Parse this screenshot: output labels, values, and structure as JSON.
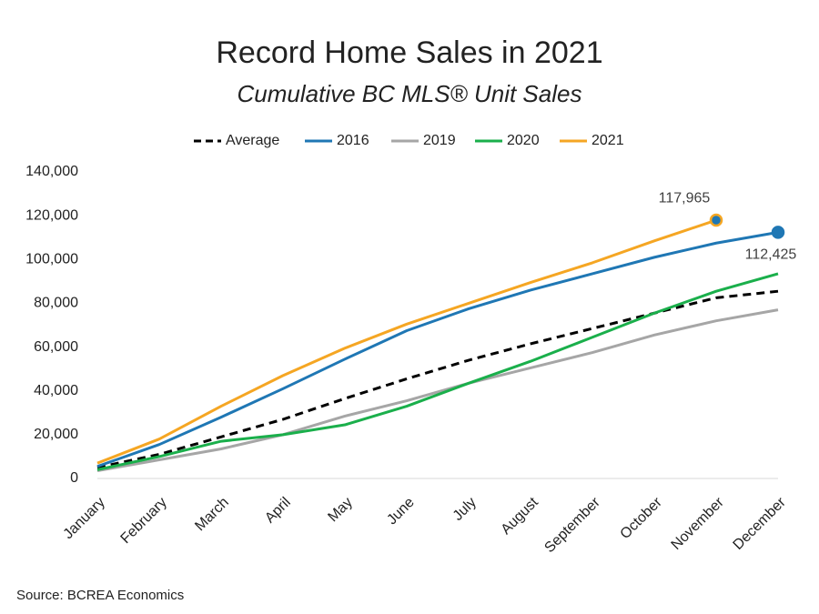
{
  "chart_data": {
    "type": "line",
    "title": "Record Home Sales in 2021",
    "subtitle": "Cumulative BC MLS® Unit Sales",
    "source": "Source: BCREA Economics",
    "categories": [
      "January",
      "February",
      "March",
      "April",
      "May",
      "June",
      "July",
      "August",
      "September",
      "October",
      "November",
      "December"
    ],
    "series": [
      {
        "name": "Average",
        "color": "#000000",
        "dashed": true,
        "values": [
          5000,
          11000,
          19000,
          27000,
          36500,
          45500,
          54000,
          61500,
          68500,
          75500,
          82500,
          85500
        ]
      },
      {
        "name": "2016",
        "color": "#1f77b4",
        "values": [
          5500,
          15500,
          28000,
          41000,
          54500,
          67500,
          77500,
          86000,
          93500,
          101000,
          107500,
          112425
        ],
        "value_labels": [
          null,
          null,
          null,
          null,
          null,
          null,
          null,
          null,
          null,
          null,
          null,
          "112,425"
        ]
      },
      {
        "name": "2019",
        "color": "#a6a6a6",
        "values": [
          3500,
          8500,
          13500,
          20000,
          28500,
          35500,
          43500,
          50500,
          57500,
          65500,
          72000,
          77000
        ]
      },
      {
        "name": "2020",
        "color": "#1aaf4b",
        "values": [
          4000,
          10000,
          17000,
          20000,
          24500,
          33000,
          43500,
          53500,
          64500,
          75500,
          85500,
          93500
        ]
      },
      {
        "name": "2021",
        "color": "#f5a623",
        "values": [
          7000,
          18000,
          33000,
          47000,
          59500,
          70500,
          80000,
          89500,
          98500,
          108500,
          117965,
          null
        ],
        "value_labels": [
          null,
          null,
          null,
          null,
          null,
          null,
          null,
          null,
          null,
          null,
          "117,965",
          null
        ]
      }
    ],
    "ylim": [
      0,
      140000
    ],
    "yticks": [
      0,
      {
        "value": 20000,
        "label": "20,000"
      },
      {
        "value": 40000,
        "label": "40,000"
      },
      {
        "value": 60000,
        "label": "60,000"
      },
      {
        "value": 80000,
        "label": "80,000"
      },
      {
        "value": 100000,
        "label": "100,000"
      },
      {
        "value": 120000,
        "label": "120,000"
      },
      {
        "value": 140000,
        "label": "140,000"
      }
    ],
    "grid": false,
    "legend": "top"
  }
}
